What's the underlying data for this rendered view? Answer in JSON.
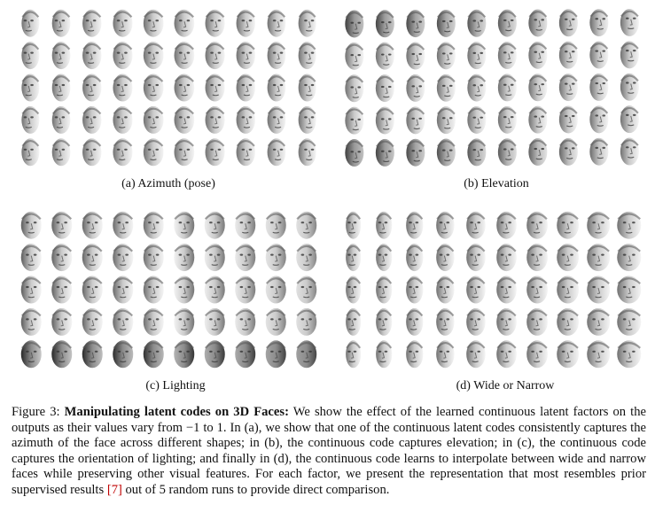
{
  "figure": {
    "panels": [
      {
        "id": "a",
        "caption": "(a) Azimuth (pose)",
        "rows": 5,
        "cols": 10,
        "factor": "azimuth"
      },
      {
        "id": "b",
        "caption": "(b) Elevation",
        "rows": 5,
        "cols": 10,
        "factor": "elevation"
      },
      {
        "id": "c",
        "caption": "(c) Lighting",
        "rows": 5,
        "cols": 10,
        "factor": "lighting"
      },
      {
        "id": "d",
        "caption": "(d) Wide or Narrow",
        "rows": 5,
        "cols": 10,
        "factor": "width"
      }
    ],
    "caption": {
      "label": "Figure 3:",
      "title": "Manipulating latent codes on 3D Faces:",
      "body_1": " We show the effect of the learned continuous latent factors on the outputs as their values vary from −1 to 1. In (a), we show that one of the continuous latent codes consistently captures the azimuth of the face across different shapes; in (b), the continuous code captures elevation; in (c), the continuous code captures the orientation of lighting; and finally in (d), the continuous code learns to interpolate between wide and narrow faces while preserving other visual features. For each factor, we present the representation that most resembles prior supervised results ",
      "citation": "[7]",
      "body_2": " out of 5 random runs to provide direct comparison."
    }
  }
}
